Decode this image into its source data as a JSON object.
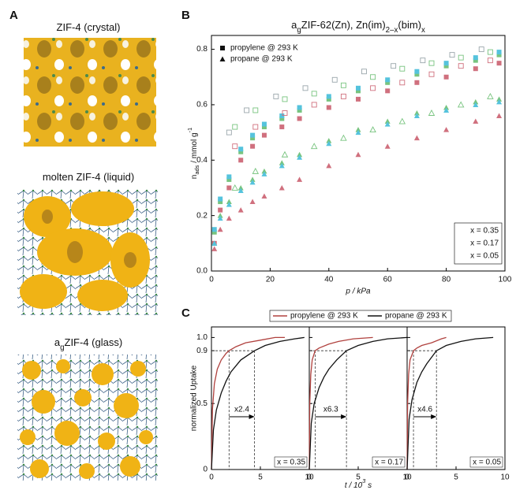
{
  "panel_a": {
    "label": "A",
    "items": [
      {
        "title": [
          {
            "text": "ZIF-4 (crystal)"
          }
        ]
      },
      {
        "title": [
          {
            "text": "molten ZIF-4 (liquid)"
          }
        ]
      },
      {
        "title": [
          {
            "text": "a"
          },
          {
            "text": "g",
            "sub": true
          },
          {
            "text": "ZIF-4 (glass)"
          }
        ]
      }
    ]
  },
  "chart_data": [
    {
      "type": "scatter",
      "panel": "B",
      "title": [
        {
          "text": "a"
        },
        {
          "text": "g",
          "sub": true
        },
        {
          "text": "ZIF-62(Zn), Zn(im)"
        },
        {
          "text": "2–x",
          "sub": true
        },
        {
          "text": "(bim)"
        },
        {
          "text": "x",
          "sub": true
        }
      ],
      "ylabel": [
        {
          "text": "n"
        },
        {
          "text": "ads",
          "sub": true
        },
        {
          "text": " / mmol g"
        },
        {
          "text": "-1",
          "sup": true
        }
      ],
      "xlabel": "p / kPa",
      "xlim": [
        0,
        100
      ],
      "xticks": [
        0,
        20,
        40,
        60,
        80,
        100
      ],
      "ylim": [
        0,
        0.85
      ],
      "yticks": [
        {
          "value": 0,
          "label": "0.0"
        },
        0.2,
        0.4,
        0.6,
        0.8
      ],
      "legend": [
        {
          "label": "propylene @ 293 K",
          "marker": "square"
        },
        {
          "label": "propane @ 293 K",
          "marker": "triangle"
        }
      ],
      "annotations": [
        {
          "text": "x = 0.35",
          "color": "#d0707e"
        },
        {
          "text": "x = 0.17",
          "color": "#78c47f"
        },
        {
          "text": "x = 0.05",
          "color": "#55c3dd"
        }
      ],
      "series": [
        {
          "color": "#d0707e",
          "marker": "square",
          "filled": true,
          "x": [
            1,
            3,
            6,
            10,
            14,
            18,
            24,
            30,
            40,
            50,
            60,
            70,
            80,
            90,
            98
          ],
          "y": [
            0.1,
            0.22,
            0.3,
            0.4,
            0.45,
            0.49,
            0.52,
            0.55,
            0.59,
            0.62,
            0.65,
            0.68,
            0.7,
            0.73,
            0.75
          ]
        },
        {
          "color": "#78c47f",
          "marker": "square",
          "filled": true,
          "x": [
            1,
            3,
            6,
            10,
            14,
            18,
            24,
            30,
            40,
            50,
            60,
            70,
            80,
            90,
            98
          ],
          "y": [
            0.14,
            0.25,
            0.33,
            0.43,
            0.48,
            0.52,
            0.55,
            0.58,
            0.62,
            0.65,
            0.68,
            0.71,
            0.74,
            0.76,
            0.78
          ]
        },
        {
          "color": "#55c3dd",
          "marker": "square",
          "filled": true,
          "x": [
            1,
            3,
            6,
            10,
            14,
            18,
            24,
            30,
            40,
            50,
            60,
            70,
            80,
            90,
            98
          ],
          "y": [
            0.15,
            0.26,
            0.34,
            0.44,
            0.49,
            0.53,
            0.56,
            0.59,
            0.63,
            0.66,
            0.69,
            0.72,
            0.75,
            0.77,
            0.79
          ]
        },
        {
          "color": "#d0707e",
          "marker": "triangle",
          "filled": true,
          "x": [
            1,
            3,
            6,
            10,
            14,
            18,
            24,
            30,
            40,
            50,
            60,
            70,
            80,
            90,
            98
          ],
          "y": [
            0.08,
            0.15,
            0.19,
            0.22,
            0.25,
            0.27,
            0.3,
            0.33,
            0.38,
            0.42,
            0.45,
            0.48,
            0.51,
            0.54,
            0.56
          ]
        },
        {
          "color": "#78c47f",
          "marker": "triangle",
          "filled": true,
          "x": [
            1,
            3,
            6,
            10,
            14,
            18,
            24,
            30,
            40,
            50,
            60,
            70,
            80,
            90,
            98
          ],
          "y": [
            0.1,
            0.2,
            0.25,
            0.3,
            0.33,
            0.36,
            0.39,
            0.42,
            0.47,
            0.51,
            0.54,
            0.57,
            0.59,
            0.61,
            0.62
          ]
        },
        {
          "color": "#55c3dd",
          "marker": "triangle",
          "filled": true,
          "x": [
            1,
            3,
            6,
            10,
            14,
            18,
            24,
            30,
            40,
            50,
            60,
            70,
            80,
            90,
            98
          ],
          "y": [
            0.1,
            0.19,
            0.24,
            0.29,
            0.32,
            0.35,
            0.38,
            0.41,
            0.46,
            0.5,
            0.53,
            0.56,
            0.58,
            0.6,
            0.61
          ]
        },
        {
          "color": "#d0707e",
          "marker": "square",
          "filled": false,
          "x": [
            95,
            85,
            75,
            65,
            55,
            45,
            35,
            25,
            15,
            8
          ],
          "y": [
            0.76,
            0.74,
            0.71,
            0.68,
            0.66,
            0.63,
            0.6,
            0.57,
            0.52,
            0.45
          ]
        },
        {
          "color": "#78c47f",
          "marker": "square",
          "filled": false,
          "x": [
            95,
            85,
            75,
            65,
            55,
            45,
            35,
            25,
            15,
            8
          ],
          "y": [
            0.79,
            0.77,
            0.75,
            0.73,
            0.7,
            0.67,
            0.64,
            0.62,
            0.58,
            0.52
          ]
        },
        {
          "color": "#9aa6ab",
          "marker": "square",
          "filled": false,
          "x": [
            92,
            82,
            72,
            62,
            52,
            42,
            32,
            22,
            12,
            6
          ],
          "y": [
            0.8,
            0.78,
            0.76,
            0.74,
            0.72,
            0.69,
            0.66,
            0.63,
            0.58,
            0.5
          ]
        },
        {
          "color": "#78c47f",
          "marker": "triangle",
          "filled": false,
          "x": [
            95,
            85,
            75,
            65,
            55,
            45,
            35,
            25,
            15,
            8
          ],
          "y": [
            0.63,
            0.6,
            0.57,
            0.54,
            0.51,
            0.48,
            0.45,
            0.42,
            0.36,
            0.3
          ]
        }
      ]
    },
    {
      "type": "line",
      "panel": "C",
      "ylabel": "normalized Uptake",
      "xlabel": [
        {
          "text": "t / 10"
        },
        {
          "text": "3",
          "sup": true
        },
        {
          "text": " s"
        }
      ],
      "xlim": [
        0,
        10
      ],
      "xticks": [
        0,
        5,
        10
      ],
      "ylim": [
        0,
        1.08
      ],
      "yticks": [
        0,
        0.5,
        0.9,
        {
          "value": 1,
          "label": "1.0"
        }
      ],
      "threshold": 0.9,
      "legend": [
        {
          "label": "propylene @ 293 K",
          "color": "#b0413e"
        },
        {
          "label": "propane @ 293 K",
          "color": "#111111"
        }
      ],
      "subplots": [
        {
          "annotation": {
            "text": "x = 0.35",
            "color": "#d0707e"
          },
          "ratio_label": "x2.4",
          "t90": [
            1.8,
            4.4
          ],
          "series": [
            {
              "color": "#b0413e",
              "x": [
                0,
                0.1,
                0.3,
                0.6,
                1,
                1.5,
                1.8,
                2.5,
                3.5,
                5,
                6.5,
                7.5
              ],
              "y": [
                0,
                0.45,
                0.65,
                0.76,
                0.83,
                0.88,
                0.9,
                0.93,
                0.96,
                0.98,
                1.0,
                1.0
              ]
            },
            {
              "color": "#111111",
              "x": [
                0,
                0.2,
                0.5,
                1,
                1.5,
                2,
                3,
                4.4,
                5.5,
                7,
                8.5,
                9.5
              ],
              "y": [
                0,
                0.3,
                0.45,
                0.58,
                0.67,
                0.74,
                0.83,
                0.9,
                0.94,
                0.97,
                0.99,
                1.0
              ]
            }
          ]
        },
        {
          "annotation": {
            "text": "x = 0.17",
            "color": "#78c47f"
          },
          "ratio_label": "x6.3",
          "t90": [
            0.6,
            3.8
          ],
          "series": [
            {
              "color": "#b0413e",
              "x": [
                0,
                0.05,
                0.15,
                0.3,
                0.6,
                1,
                2,
                3,
                4.5,
                6.5
              ],
              "y": [
                0,
                0.5,
                0.72,
                0.83,
                0.9,
                0.92,
                0.95,
                0.97,
                0.99,
                1.0
              ]
            },
            {
              "color": "#111111",
              "x": [
                0,
                0.2,
                0.5,
                1,
                1.5,
                2,
                2.8,
                3.8,
                5,
                6.5,
                8,
                10
              ],
              "y": [
                0,
                0.35,
                0.5,
                0.62,
                0.7,
                0.76,
                0.83,
                0.9,
                0.94,
                0.97,
                0.99,
                1.0
              ]
            }
          ]
        },
        {
          "annotation": {
            "text": "x = 0.05",
            "color": "#55c3dd"
          },
          "ratio_label": "x4.6",
          "t90": [
            0.65,
            3.0
          ],
          "series": [
            {
              "color": "#b0413e",
              "x": [
                0,
                0.05,
                0.15,
                0.3,
                0.65,
                1,
                1.5,
                2.5,
                3.5,
                4
              ],
              "y": [
                0,
                0.5,
                0.72,
                0.83,
                0.9,
                0.92,
                0.94,
                0.96,
                0.99,
                1.0
              ]
            },
            {
              "color": "#111111",
              "x": [
                0,
                0.2,
                0.5,
                1,
                1.5,
                2,
                3,
                4,
                5.5,
                7,
                8.8
              ],
              "y": [
                0,
                0.38,
                0.53,
                0.66,
                0.74,
                0.8,
                0.9,
                0.94,
                0.97,
                0.99,
                1.0
              ]
            }
          ]
        }
      ]
    }
  ]
}
